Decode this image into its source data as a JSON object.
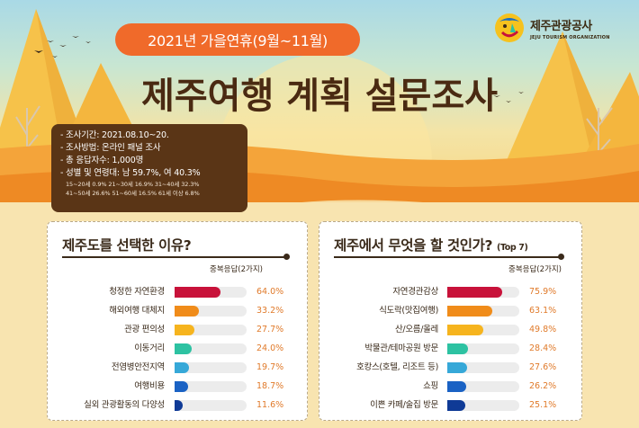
{
  "header": {
    "period_label": "2021년 가을연휴(9월~11월)",
    "title": "제주여행 계획 설문조사",
    "org_name_ko": "제주관광공사",
    "org_name_en": "JEJU TOURISM ORGANIZATION"
  },
  "survey_info": {
    "lines": [
      "- 조사기간: 2021.08.10~20.",
      "- 조사방법: 온라인 패널 조사",
      "- 총 응답자수: 1,000명",
      "- 성별 및 연령대: 남 59.7%, 여 40.3%"
    ],
    "age_line_1": "15~20세 0.9% 21~30세 16.9% 31~40세 32.3%",
    "age_line_2": "41~50세 26.6% 51~60세 16.5% 61세 이상 6.8%"
  },
  "chart_data": [
    {
      "type": "bar",
      "title": "제주도를 선택한 이유?",
      "note": "중복응답(2가지)",
      "categories": [
        "청정한 자연환경",
        "해외여행 대체지",
        "관광 편의성",
        "이동거리",
        "전염병안전지역",
        "여행비용",
        "실외 관광활동의 다양성"
      ],
      "values": [
        64.0,
        33.2,
        27.7,
        24.0,
        19.7,
        18.7,
        11.6
      ],
      "labels": [
        "64.0%",
        "33.2%",
        "27.7%",
        "24.0%",
        "19.7%",
        "18.7%",
        "11.6%"
      ],
      "colors": [
        "#c8123a",
        "#f08c1a",
        "#f6b41e",
        "#2dc2a2",
        "#36a8d8",
        "#1a62c4",
        "#0f3a96"
      ],
      "ylim": [
        0,
        100
      ]
    },
    {
      "type": "bar",
      "title": "제주에서 무엇을 할 것인가?",
      "title_suffix": "(Top 7)",
      "note": "중복응답(2가지)",
      "categories": [
        "자연경관감상",
        "식도락(맛집여행)",
        "산/오름/올레",
        "박물관/테마공원 방문",
        "호캉스(호텔, 리조트 등)",
        "쇼핑",
        "이쁜 카페/술집 방문"
      ],
      "values": [
        75.9,
        63.1,
        49.8,
        28.4,
        27.6,
        26.2,
        25.1
      ],
      "labels": [
        "75.9%",
        "63.1%",
        "49.8%",
        "28.4%",
        "27.6%",
        "26.2%",
        "25.1%"
      ],
      "colors": [
        "#c8123a",
        "#f08c1a",
        "#f6b41e",
        "#2dc2a2",
        "#36a8d8",
        "#1a62c4",
        "#0f3a96"
      ],
      "ylim": [
        0,
        100
      ]
    }
  ]
}
